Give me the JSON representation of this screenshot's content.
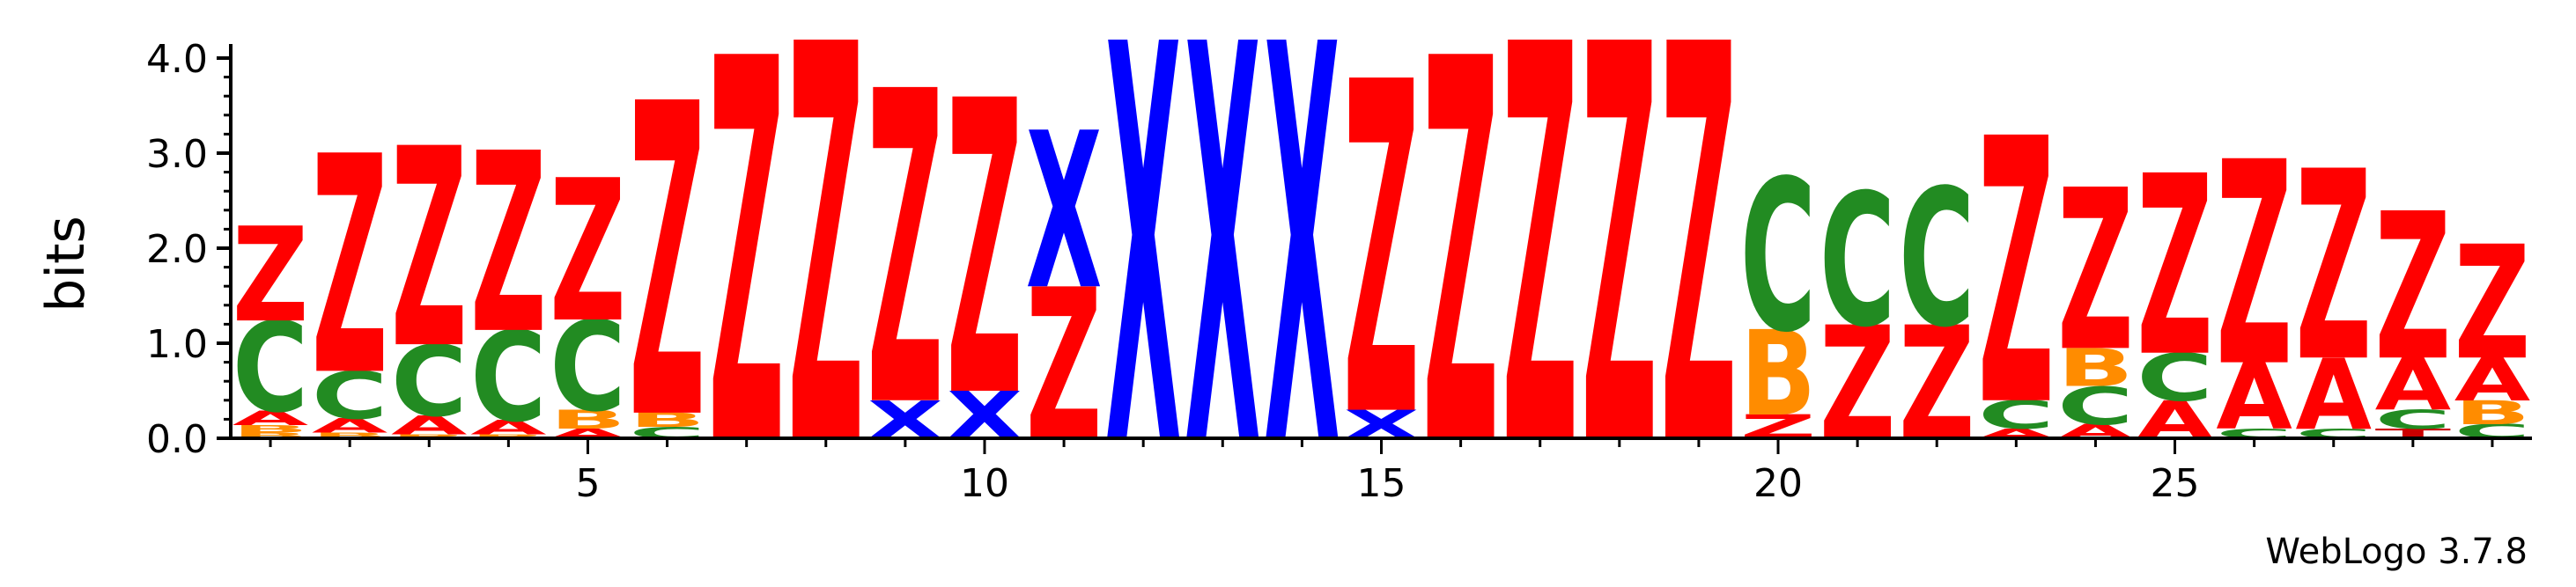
{
  "chart_data": {
    "type": "sequence-logo",
    "ylabel": "bits",
    "ylim": [
      0,
      4.2
    ],
    "yticks": [
      "0.0",
      "1.0",
      "2.0",
      "3.0",
      "4.0"
    ],
    "xlim": [
      0.5,
      29.5
    ],
    "xticks": [
      5,
      10,
      15,
      20,
      25
    ],
    "colors": {
      "Z": "#ff0000",
      "A": "#ff0000",
      "C": "#228b22",
      "B": "#ff8c00",
      "X": "#0000ff",
      "T": "#cc0000",
      "G": "#ffa500"
    },
    "positions": [
      {
        "pos": 1,
        "stack": [
          {
            "l": "B",
            "h": 0.06
          },
          {
            "l": "B",
            "h": 0.08
          },
          {
            "l": "A",
            "h": 0.15
          },
          {
            "l": "C",
            "h": 0.95
          },
          {
            "l": "Z",
            "h": 1.0
          }
        ]
      },
      {
        "pos": 2,
        "stack": [
          {
            "l": "B",
            "h": 0.06
          },
          {
            "l": "A",
            "h": 0.15
          },
          {
            "l": "C",
            "h": 0.5
          },
          {
            "l": "Z",
            "h": 2.3
          }
        ]
      },
      {
        "pos": 3,
        "stack": [
          {
            "l": "B",
            "h": 0.04
          },
          {
            "l": "A",
            "h": 0.2
          },
          {
            "l": "C",
            "h": 0.75
          },
          {
            "l": "Z",
            "h": 2.1
          }
        ]
      },
      {
        "pos": 4,
        "stack": [
          {
            "l": "B",
            "h": 0.04
          },
          {
            "l": "A",
            "h": 0.15
          },
          {
            "l": "C",
            "h": 0.95
          },
          {
            "l": "Z",
            "h": 1.9
          }
        ]
      },
      {
        "pos": 5,
        "stack": [
          {
            "l": "A",
            "h": 0.1
          },
          {
            "l": "B",
            "h": 0.2
          },
          {
            "l": "C",
            "h": 0.95
          },
          {
            "l": "Z",
            "h": 1.5
          }
        ]
      },
      {
        "pos": 6,
        "stack": [
          {
            "l": "C",
            "h": 0.12
          },
          {
            "l": "B",
            "h": 0.15
          },
          {
            "l": "Z",
            "h": 3.3
          }
        ]
      },
      {
        "pos": 7,
        "stack": [
          {
            "l": "Z",
            "h": 4.05
          }
        ]
      },
      {
        "pos": 8,
        "stack": [
          {
            "l": "Z",
            "h": 4.2
          }
        ]
      },
      {
        "pos": 9,
        "stack": [
          {
            "l": "X",
            "h": 0.4
          },
          {
            "l": "Z",
            "h": 3.3
          }
        ]
      },
      {
        "pos": 10,
        "stack": [
          {
            "l": "X",
            "h": 0.5
          },
          {
            "l": "Z",
            "h": 3.1
          }
        ]
      },
      {
        "pos": 11,
        "stack": [
          {
            "l": "Z",
            "h": 1.6
          },
          {
            "l": "X",
            "h": 1.65
          }
        ]
      },
      {
        "pos": 12,
        "stack": [
          {
            "l": "X",
            "h": 4.2
          }
        ]
      },
      {
        "pos": 13,
        "stack": [
          {
            "l": "X",
            "h": 4.2
          }
        ]
      },
      {
        "pos": 14,
        "stack": [
          {
            "l": "X",
            "h": 4.2
          }
        ]
      },
      {
        "pos": 15,
        "stack": [
          {
            "l": "X",
            "h": 0.3
          },
          {
            "l": "Z",
            "h": 3.5
          }
        ]
      },
      {
        "pos": 16,
        "stack": [
          {
            "l": "Z",
            "h": 4.05
          }
        ]
      },
      {
        "pos": 17,
        "stack": [
          {
            "l": "Z",
            "h": 4.2
          }
        ]
      },
      {
        "pos": 18,
        "stack": [
          {
            "l": "Z",
            "h": 4.2
          }
        ]
      },
      {
        "pos": 19,
        "stack": [
          {
            "l": "Z",
            "h": 4.2
          }
        ]
      },
      {
        "pos": 20,
        "stack": [
          {
            "l": "Z",
            "h": 0.25
          },
          {
            "l": "B",
            "h": 0.9
          },
          {
            "l": "C",
            "h": 1.6
          }
        ]
      },
      {
        "pos": 21,
        "stack": [
          {
            "l": "Z",
            "h": 1.2
          },
          {
            "l": "C",
            "h": 1.4
          }
        ]
      },
      {
        "pos": 22,
        "stack": [
          {
            "l": "Z",
            "h": 1.2
          },
          {
            "l": "C",
            "h": 1.45
          }
        ]
      },
      {
        "pos": 23,
        "stack": [
          {
            "l": "A",
            "h": 0.1
          },
          {
            "l": "C",
            "h": 0.3
          },
          {
            "l": "Z",
            "h": 2.8
          }
        ]
      },
      {
        "pos": 24,
        "stack": [
          {
            "l": "A",
            "h": 0.15
          },
          {
            "l": "C",
            "h": 0.4
          },
          {
            "l": "B",
            "h": 0.4
          },
          {
            "l": "Z",
            "h": 1.7
          }
        ]
      },
      {
        "pos": 25,
        "stack": [
          {
            "l": "A",
            "h": 0.4
          },
          {
            "l": "C",
            "h": 0.5
          },
          {
            "l": "Z",
            "h": 1.9
          }
        ]
      },
      {
        "pos": 26,
        "stack": [
          {
            "l": "C",
            "h": 0.1
          },
          {
            "l": "A",
            "h": 0.7
          },
          {
            "l": "Z",
            "h": 2.15
          }
        ]
      },
      {
        "pos": 27,
        "stack": [
          {
            "l": "C",
            "h": 0.1
          },
          {
            "l": "A",
            "h": 0.75
          },
          {
            "l": "Z",
            "h": 2.0
          }
        ]
      },
      {
        "pos": 28,
        "stack": [
          {
            "l": "T",
            "h": 0.1
          },
          {
            "l": "C",
            "h": 0.2
          },
          {
            "l": "A",
            "h": 0.55
          },
          {
            "l": "Z",
            "h": 1.55
          }
        ]
      },
      {
        "pos": 29,
        "stack": [
          {
            "l": "C",
            "h": 0.15
          },
          {
            "l": "B",
            "h": 0.25
          },
          {
            "l": "A",
            "h": 0.45
          },
          {
            "l": "Z",
            "h": 1.2
          }
        ]
      }
    ]
  },
  "credit": "WebLogo 3.7.8"
}
